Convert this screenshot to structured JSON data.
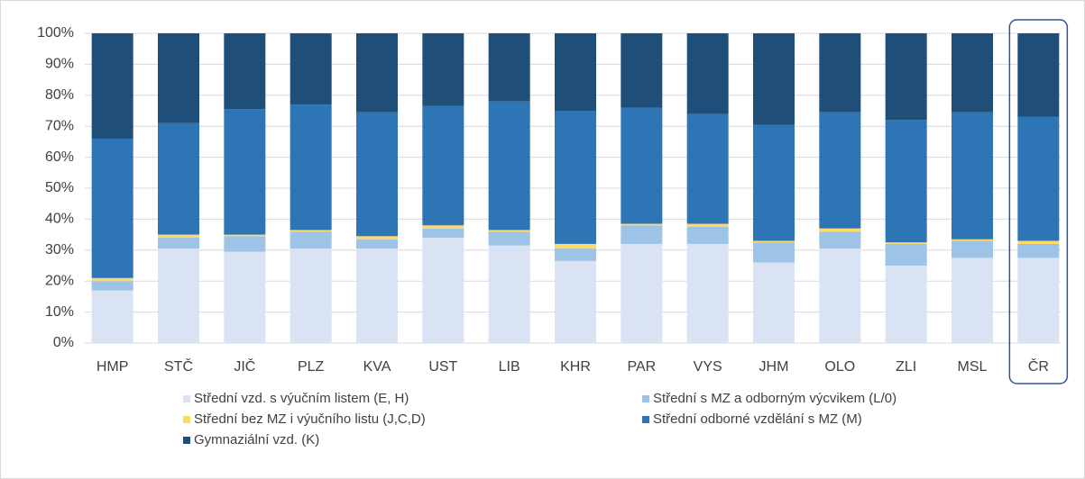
{
  "chart_data": {
    "type": "stacked_bar",
    "categories": [
      "HMP",
      "STČ",
      "JIČ",
      "PLZ",
      "KVA",
      "UST",
      "LIB",
      "KHR",
      "PAR",
      "VYS",
      "JHM",
      "OLO",
      "ZLI",
      "MSL",
      "ČR"
    ],
    "series": [
      {
        "name": "Střední vzd. s výučním listem (E, H)",
        "color": "#dae3f3",
        "values": [
          17,
          30.5,
          29.5,
          30.5,
          30.5,
          34,
          31.5,
          26.5,
          32,
          32,
          26,
          30.5,
          25,
          27.5,
          27.5
        ]
      },
      {
        "name": "Střední s MZ a odborným výcvikem (L/0)",
        "color": "#9dc3e6",
        "values": [
          3,
          3.5,
          5,
          5.5,
          3,
          3,
          4.5,
          4,
          6,
          5.5,
          6.5,
          5.5,
          7,
          5.5,
          4.5
        ]
      },
      {
        "name": "Střední bez MZ i výučního listu (J,C,D)",
        "color": "#ffd966",
        "values": [
          1,
          1,
          0.5,
          0.5,
          1,
          1,
          0.5,
          1.5,
          0.5,
          1,
          0.5,
          1,
          0.5,
          0.5,
          1
        ]
      },
      {
        "name": "Střední odborné vzdělání s MZ (M)",
        "color": "#2e75b6",
        "values": [
          45,
          36,
          40.5,
          40.5,
          40,
          38.5,
          41.5,
          43,
          37.5,
          35.5,
          37.5,
          37.5,
          39.5,
          41,
          40
        ]
      },
      {
        "name": "Gymnaziální vzd. (K)",
        "color": "#1f4e79",
        "values": [
          34,
          29,
          24.5,
          23,
          25.5,
          23.5,
          22,
          25,
          24,
          26,
          29.5,
          25.5,
          28,
          25.5,
          27
        ]
      }
    ],
    "ylim": [
      0,
      100
    ],
    "yticks": [
      {
        "value": 0,
        "label": "0%"
      },
      {
        "value": 10,
        "label": "10%"
      },
      {
        "value": 20,
        "label": "20%"
      },
      {
        "value": 30,
        "label": "30%"
      },
      {
        "value": 40,
        "label": "40%"
      },
      {
        "value": 50,
        "label": "50%"
      },
      {
        "value": 60,
        "label": "60%"
      },
      {
        "value": 70,
        "label": "70%"
      },
      {
        "value": 80,
        "label": "80%"
      },
      {
        "value": 90,
        "label": "90%"
      },
      {
        "value": 100,
        "label": "100%"
      }
    ],
    "grid": true
  }
}
